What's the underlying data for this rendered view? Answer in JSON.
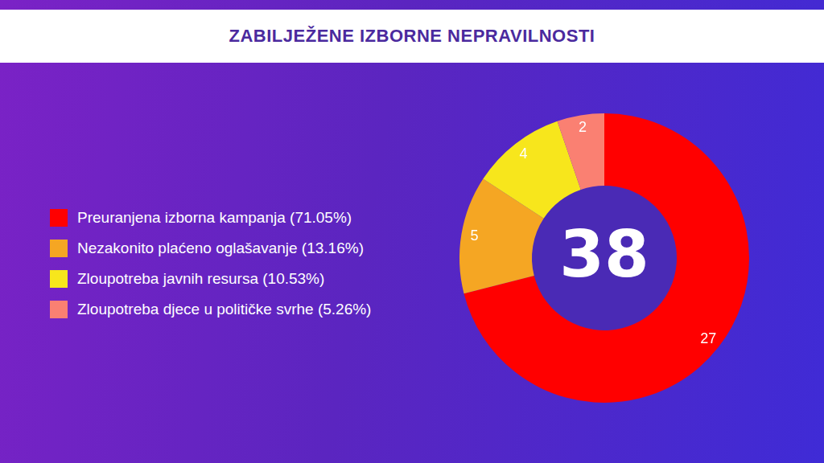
{
  "chart_data": {
    "type": "doughnut",
    "title": "ZABILJEŽENE IZBORNE NEPRAVILNOSTI",
    "categories": [
      "Preuranjena izborna kampanja (71.05%)",
      "Nezakonito plaćeno oglašavanje (13.16%)",
      "Zloupotreba javnih resursa (10.53%)",
      "Zloupotreba djece u političke svrhe (5.26%)"
    ],
    "values": [
      27,
      5,
      4,
      2
    ],
    "colors": [
      "#ff0000",
      "#f5a623",
      "#f7e61c",
      "#fa8072"
    ],
    "total": 38,
    "data_labels": true,
    "legend": "left"
  }
}
